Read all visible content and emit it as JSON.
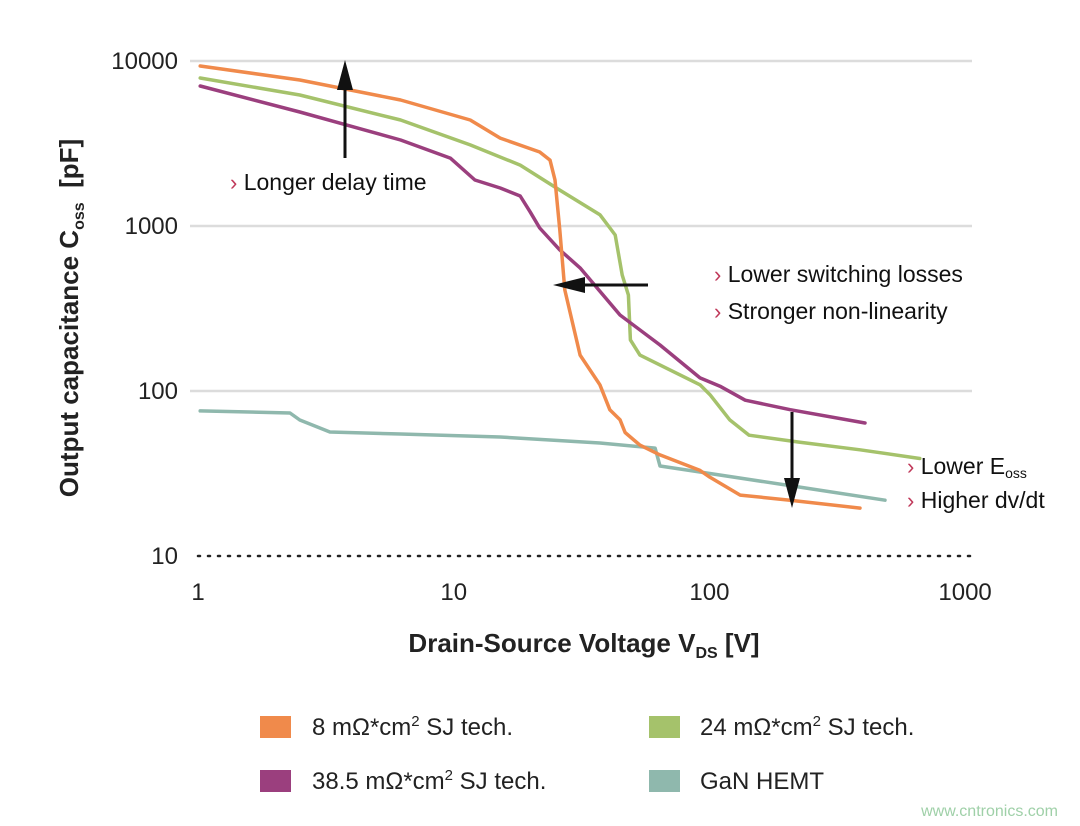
{
  "chart_data": {
    "type": "line",
    "title": "",
    "xlabel": {
      "main": "Drain-Source Voltage V",
      "sub": "DS",
      "unit": " [V]"
    },
    "ylabel": {
      "main": "Output capacitance C",
      "sub": "oss",
      "unit": "  [pF]"
    },
    "xscale": "log",
    "yscale": "log",
    "xlim": [
      1,
      1000
    ],
    "ylim": [
      10,
      10000
    ],
    "xticks": [
      {
        "v": 1,
        "label": "1"
      },
      {
        "v": 10,
        "label": "10"
      },
      {
        "v": 100,
        "label": "100"
      },
      {
        "v": 1000,
        "label": "1000"
      }
    ],
    "yticks": [
      {
        "v": 10000,
        "label": "10000"
      },
      {
        "v": 1000,
        "label": "1000"
      },
      {
        "v": 100,
        "label": "100"
      },
      {
        "v": 10,
        "label": "10"
      }
    ],
    "grid": "horizontal",
    "legend_placement": "bottom",
    "series": [
      {
        "name": "8 mΩ*cm² SJ tech.",
        "label_main": "8 mΩ*cm",
        "label_sup": "2",
        "label_rest": " SJ tech.",
        "color": "#f08a4b",
        "x": [
          1.02,
          2.5,
          6.2,
          11.6,
          15.2,
          21.7,
          23.8,
          24.9,
          26.0,
          27.2,
          31.2,
          37.3,
          40.8,
          44.7,
          46.8,
          53.5,
          64.1,
          91.9,
          100.5,
          132,
          207,
          388
        ],
        "y": [
          9330,
          7670,
          5800,
          4390,
          3410,
          2810,
          2510,
          1900,
          946,
          410,
          165,
          109,
          77,
          67,
          56,
          47,
          41,
          33,
          30,
          23.4,
          21.8,
          19.5
        ]
      },
      {
        "name": "24 mΩ*cm² SJ tech.",
        "label_main": "24 mΩ*cm",
        "label_sup": "2",
        "label_rest": " SJ tech.",
        "color": "#a5c26b",
        "x": [
          1.02,
          2.5,
          6.2,
          11.6,
          18.2,
          26.0,
          37.3,
          42.8,
          45.6,
          48.2,
          49.1,
          53.5,
          91.9,
          100.5,
          120,
          143,
          224,
          388,
          665
        ],
        "y": [
          7890,
          6220,
          4390,
          3100,
          2340,
          1650,
          1170,
          882,
          505,
          382,
          204,
          165,
          109,
          95,
          67,
          54,
          49,
          44,
          39
        ]
      },
      {
        "name": "38.5 mΩ*cm² SJ tech.",
        "label_main": "38.5 mΩ*cm",
        "label_sup": "2",
        "label_rest": " SJ tech.",
        "color": "#9b3f7e",
        "x": [
          1.02,
          2.5,
          6.2,
          9.7,
          12.1,
          15.2,
          18.2,
          19.9,
          21.7,
          26.0,
          31.2,
          44.7,
          64.1,
          91.9,
          110,
          138,
          207,
          406
        ],
        "y": [
          7050,
          4910,
          3320,
          2580,
          1900,
          1700,
          1520,
          1220,
          973,
          716,
          557,
          289,
          190,
          120,
          107,
          88,
          77,
          64
        ]
      },
      {
        "name": "GaN HEMT",
        "label_main": "GaN HEMT",
        "label_sup": "",
        "label_rest": "",
        "color": "#8fb8ad",
        "x": [
          1.02,
          2.29,
          2.5,
          3.28,
          6.2,
          15.2,
          37.3,
          61.3,
          64.1,
          91.9,
          224,
          486
        ],
        "y": [
          75.7,
          73.6,
          66.7,
          56.4,
          54.9,
          52.6,
          48.4,
          45.1,
          35.1,
          32.3,
          26.2,
          21.8
        ]
      }
    ],
    "annotations": [
      {
        "lines": [
          "Longer delay time"
        ],
        "arrow": "up"
      },
      {
        "lines": [
          "Lower switching losses",
          "Stronger non-linearity"
        ],
        "arrow": "left"
      },
      {
        "lines": [
          {
            "main": "Lower E",
            "sub": "oss"
          },
          "Higher dv/dt"
        ],
        "arrow": "down"
      }
    ]
  },
  "watermark": "www.cntronics.com"
}
